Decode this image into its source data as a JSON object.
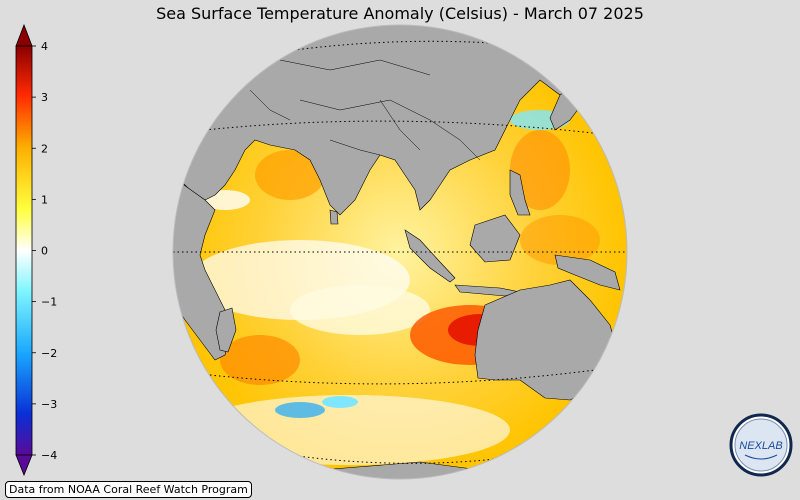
{
  "title": "Sea Surface Temperature Anomaly (Celsius) - March 07 2025",
  "colorbar": {
    "ticks": [
      "4",
      "3",
      "2",
      "1",
      "0",
      "−1",
      "−2",
      "−3",
      "−4"
    ],
    "colors": [
      "#5a0a99",
      "#0a2fd6",
      "#1aa8ff",
      "#7ff5ff",
      "#ffffff",
      "#ffff40",
      "#ffb000",
      "#ff2a00",
      "#8a0000"
    ]
  },
  "attribution": "Data from NOAA Coral Reef Watch Program",
  "logo": {
    "text": "NEXLAB",
    "icon": "nexlab-logo-icon"
  },
  "map": {
    "land_color": "#a9a9a9",
    "ocean_warm_color": "#ffd000",
    "hotspot_color": "#e81c00",
    "cool_color": "#7fe6ff"
  }
}
